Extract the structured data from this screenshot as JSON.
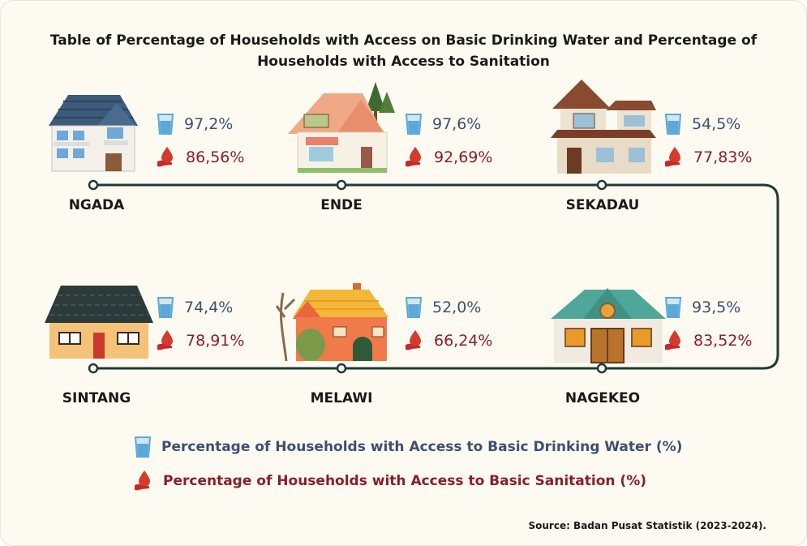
{
  "title": "Table of Percentage of Households with Access on Basic Drinking Water and Percentage of Households with Access to Sanitation",
  "colors": {
    "water": "#3e4f74",
    "sanitation": "#8b1d2a",
    "track": "#1f3a36",
    "background": "#fdfbf1"
  },
  "icons": {
    "water": "water-glass-icon",
    "sanitation": "hand-water-drop-icon"
  },
  "chart_data": {
    "type": "table",
    "categories": [
      "NGADA",
      "ENDE",
      "SEKADAU",
      "SINTANG",
      "MELAWI",
      "NAGEKEO"
    ],
    "series": [
      {
        "name": "Percentage of Households with Access to Basic Drinking Water (%)",
        "values": [
          97.2,
          97.6,
          54.5,
          74.4,
          52.0,
          93.5
        ],
        "labels": [
          "97,2%",
          "97,6%",
          "54,5%",
          "74,4%",
          "52,0%",
          "93,5%"
        ]
      },
      {
        "name": "Percentage of Households with Access to Basic Sanitation (%)",
        "values": [
          86.56,
          92.69,
          77.83,
          78.91,
          66.24,
          83.52
        ],
        "labels": [
          "86,56%",
          "92,69%",
          "77,83%",
          "78,91%",
          "66,24%",
          "83,52%"
        ]
      }
    ]
  },
  "legend": {
    "water": "Percentage of Households with Access to Basic Drinking Water (%)",
    "sanitation": "Percentage of Households with Access to Basic Sanitation (%)"
  },
  "source": "Source: Badan Pusat Statistik (2023-2024)."
}
